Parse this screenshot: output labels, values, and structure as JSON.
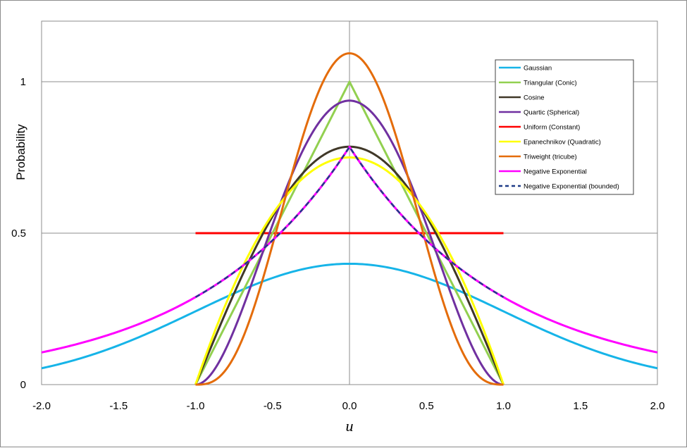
{
  "chart_data": {
    "type": "line",
    "title": "",
    "xlabel": "u",
    "ylabel": "Probability",
    "xlim": [
      -2.0,
      2.0
    ],
    "ylim": [
      0,
      1.2
    ],
    "x_ticks": [
      "-2.0",
      "-1.5",
      "-1.0",
      "-0.5",
      "0.0",
      "0.5",
      "1.0",
      "1.5",
      "2.0"
    ],
    "y_ticks": [
      "0",
      "0.5",
      "1"
    ],
    "grid": "horizontal at y ticks; vertical line at x = 0",
    "legend_position": "top-right",
    "series": [
      {
        "name": "Gaussian",
        "color": "#16b4e8",
        "dashed": false,
        "x": [
          -2.0,
          -1.5,
          -1.0,
          -0.5,
          0.0,
          0.5,
          1.0,
          1.5,
          2.0
        ],
        "y": [
          0.054,
          0.13,
          0.242,
          0.352,
          0.399,
          0.352,
          0.242,
          0.13,
          0.054
        ]
      },
      {
        "name": "Triangular (Conic)",
        "color": "#92d050",
        "dashed": false,
        "x": [
          -1.0,
          0.0,
          1.0
        ],
        "y": [
          0,
          1.0,
          0
        ]
      },
      {
        "name": "Cosine",
        "color": "#403828",
        "dashed": false,
        "x": [
          -1.0,
          -0.75,
          -0.5,
          -0.25,
          0.0,
          0.25,
          0.5,
          0.75,
          1.0
        ],
        "y": [
          0,
          0.301,
          0.555,
          0.726,
          0.785,
          0.726,
          0.555,
          0.301,
          0
        ]
      },
      {
        "name": "Quartic (Spherical)",
        "color": "#7030a0",
        "dashed": false,
        "x": [
          -1.0,
          -0.75,
          -0.5,
          -0.25,
          0.0,
          0.25,
          0.5,
          0.75,
          1.0
        ],
        "y": [
          0,
          0.179,
          0.527,
          0.824,
          0.9375,
          0.824,
          0.527,
          0.179,
          0
        ]
      },
      {
        "name": "Uniform (Constant)",
        "color": "#ff0000",
        "dashed": false,
        "x": [
          -1.0,
          1.0
        ],
        "y": [
          0.5,
          0.5
        ]
      },
      {
        "name": "Epanechnikov (Quadratic)",
        "color": "#ffff00",
        "dashed": false,
        "x": [
          -1.0,
          -0.75,
          -0.5,
          -0.25,
          0.0,
          0.25,
          0.5,
          0.75,
          1.0
        ],
        "y": [
          0,
          0.328,
          0.5625,
          0.703,
          0.75,
          0.703,
          0.5625,
          0.328,
          0
        ]
      },
      {
        "name": "Triweight (tricube)",
        "color": "#e46c0a",
        "dashed": false,
        "x": [
          -1.0,
          -0.75,
          -0.5,
          -0.25,
          0.0,
          0.25,
          0.5,
          0.75,
          1.0
        ],
        "y": [
          0,
          0.092,
          0.461,
          0.902,
          1.094,
          0.902,
          0.461,
          0.092,
          0
        ]
      },
      {
        "name": "Negative Exponential",
        "color": "#ff00ff",
        "dashed": false,
        "x": [
          -2.0,
          -1.5,
          -1.0,
          -0.5,
          0.0,
          0.5,
          1.0,
          1.5,
          2.0
        ],
        "y": [
          0.106,
          0.184,
          0.294,
          0.473,
          0.785,
          0.473,
          0.294,
          0.184,
          0.106
        ]
      },
      {
        "name": "Negative Exponential (bounded)",
        "color": "#1f3c88",
        "dashed": true,
        "x": [
          -1.0,
          -0.5,
          0.0,
          0.5,
          1.0
        ],
        "y": [
          0.294,
          0.473,
          0.785,
          0.473,
          0.294
        ]
      }
    ]
  }
}
